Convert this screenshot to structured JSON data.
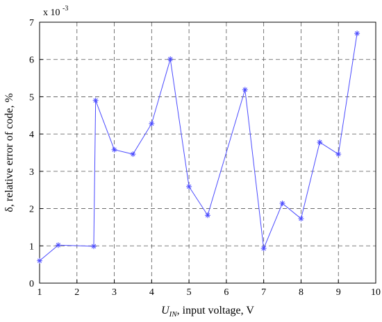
{
  "chart_data": {
    "type": "line",
    "x": [
      1,
      1.5,
      2.45,
      2.5,
      3,
      3.5,
      4,
      4.5,
      5,
      5.5,
      6.5,
      7,
      7.5,
      8,
      8.5,
      9,
      9.5
    ],
    "series": [
      {
        "color": "#4a4aff",
        "marker": "*",
        "values": [
          0.6,
          1.02,
          0.99,
          4.9,
          3.58,
          3.46,
          4.28,
          6.01,
          2.59,
          1.82,
          5.19,
          0.93,
          2.14,
          1.73,
          3.78,
          3.46,
          6.7
        ]
      }
    ],
    "xlim": [
      1,
      10
    ],
    "xticks": [
      1,
      2,
      3,
      4,
      5,
      6,
      7,
      8,
      9,
      10
    ],
    "ylim": [
      0,
      7
    ],
    "yticks": [
      0,
      1,
      2,
      3,
      4,
      5,
      6,
      7
    ],
    "y_multiplier": {
      "base": "x 10",
      "exponent": "-3"
    },
    "xlabel": {
      "symbol": "U",
      "subscript": "IN",
      "text": ", input voltage, V"
    },
    "ylabel": "δ, relative error of code, %",
    "grid": true
  }
}
